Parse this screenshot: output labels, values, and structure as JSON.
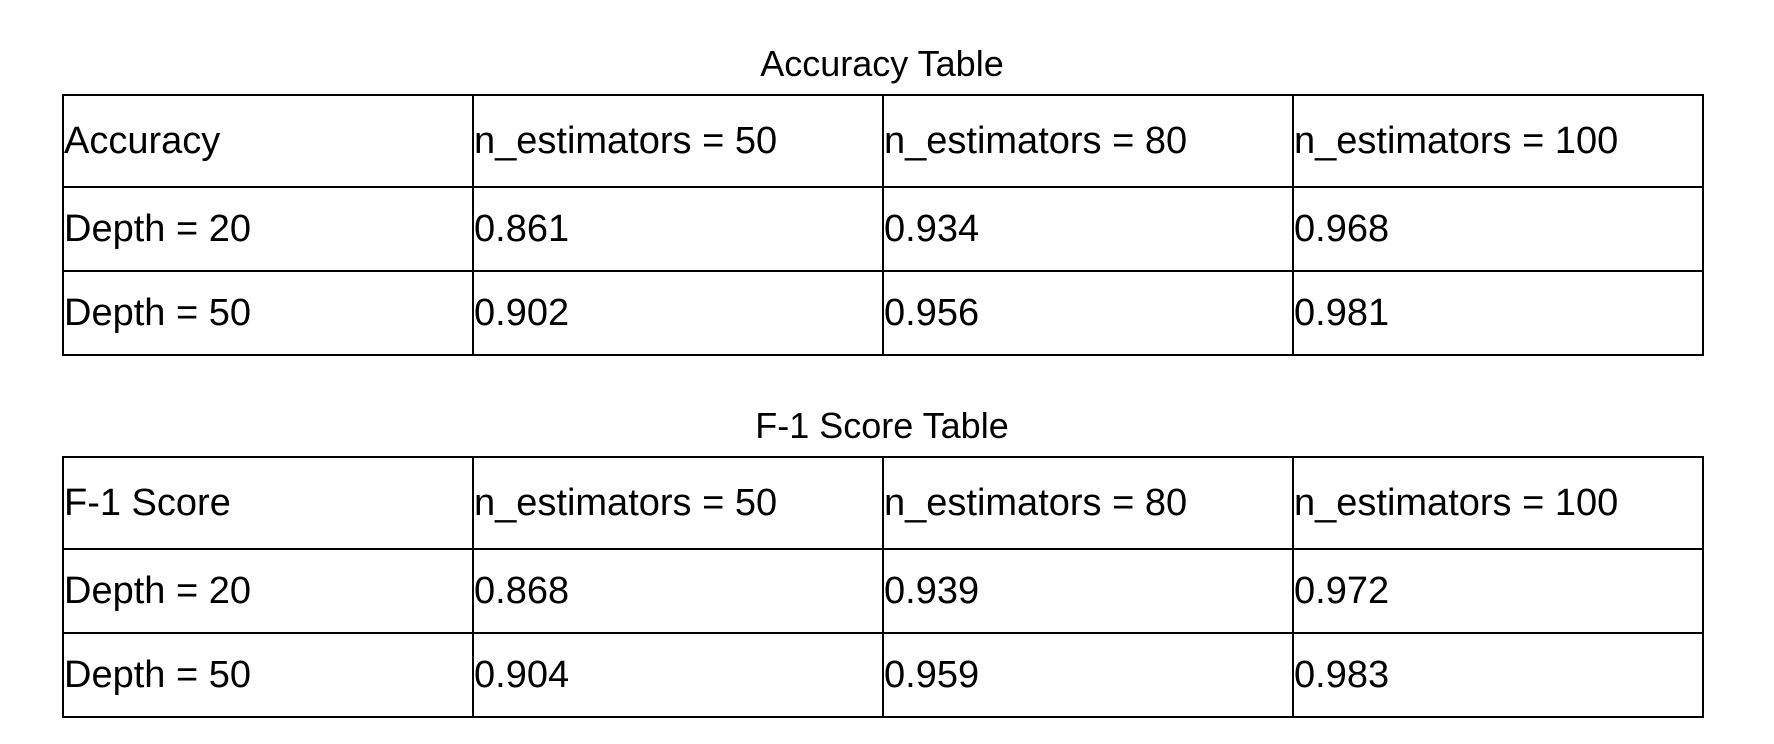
{
  "tables": [
    {
      "title": "Accuracy Table",
      "corner": "Accuracy",
      "columns": [
        "n_estimators = 50",
        "n_estimators = 80",
        "n_estimators = 100"
      ],
      "rows": [
        {
          "label": "Depth = 20",
          "values": [
            "0.861",
            "0.934",
            "0.968"
          ]
        },
        {
          "label": "Depth = 50",
          "values": [
            "0.902",
            "0.956",
            "0.981"
          ]
        }
      ]
    },
    {
      "title": "F-1 Score Table",
      "corner": "F-1 Score",
      "columns": [
        "n_estimators = 50",
        "n_estimators = 80",
        "n_estimators = 100"
      ],
      "rows": [
        {
          "label": "Depth = 20",
          "values": [
            "0.868",
            "0.939",
            "0.972"
          ]
        },
        {
          "label": "Depth = 50",
          "values": [
            "0.904",
            "0.959",
            "0.983"
          ]
        }
      ]
    }
  ]
}
